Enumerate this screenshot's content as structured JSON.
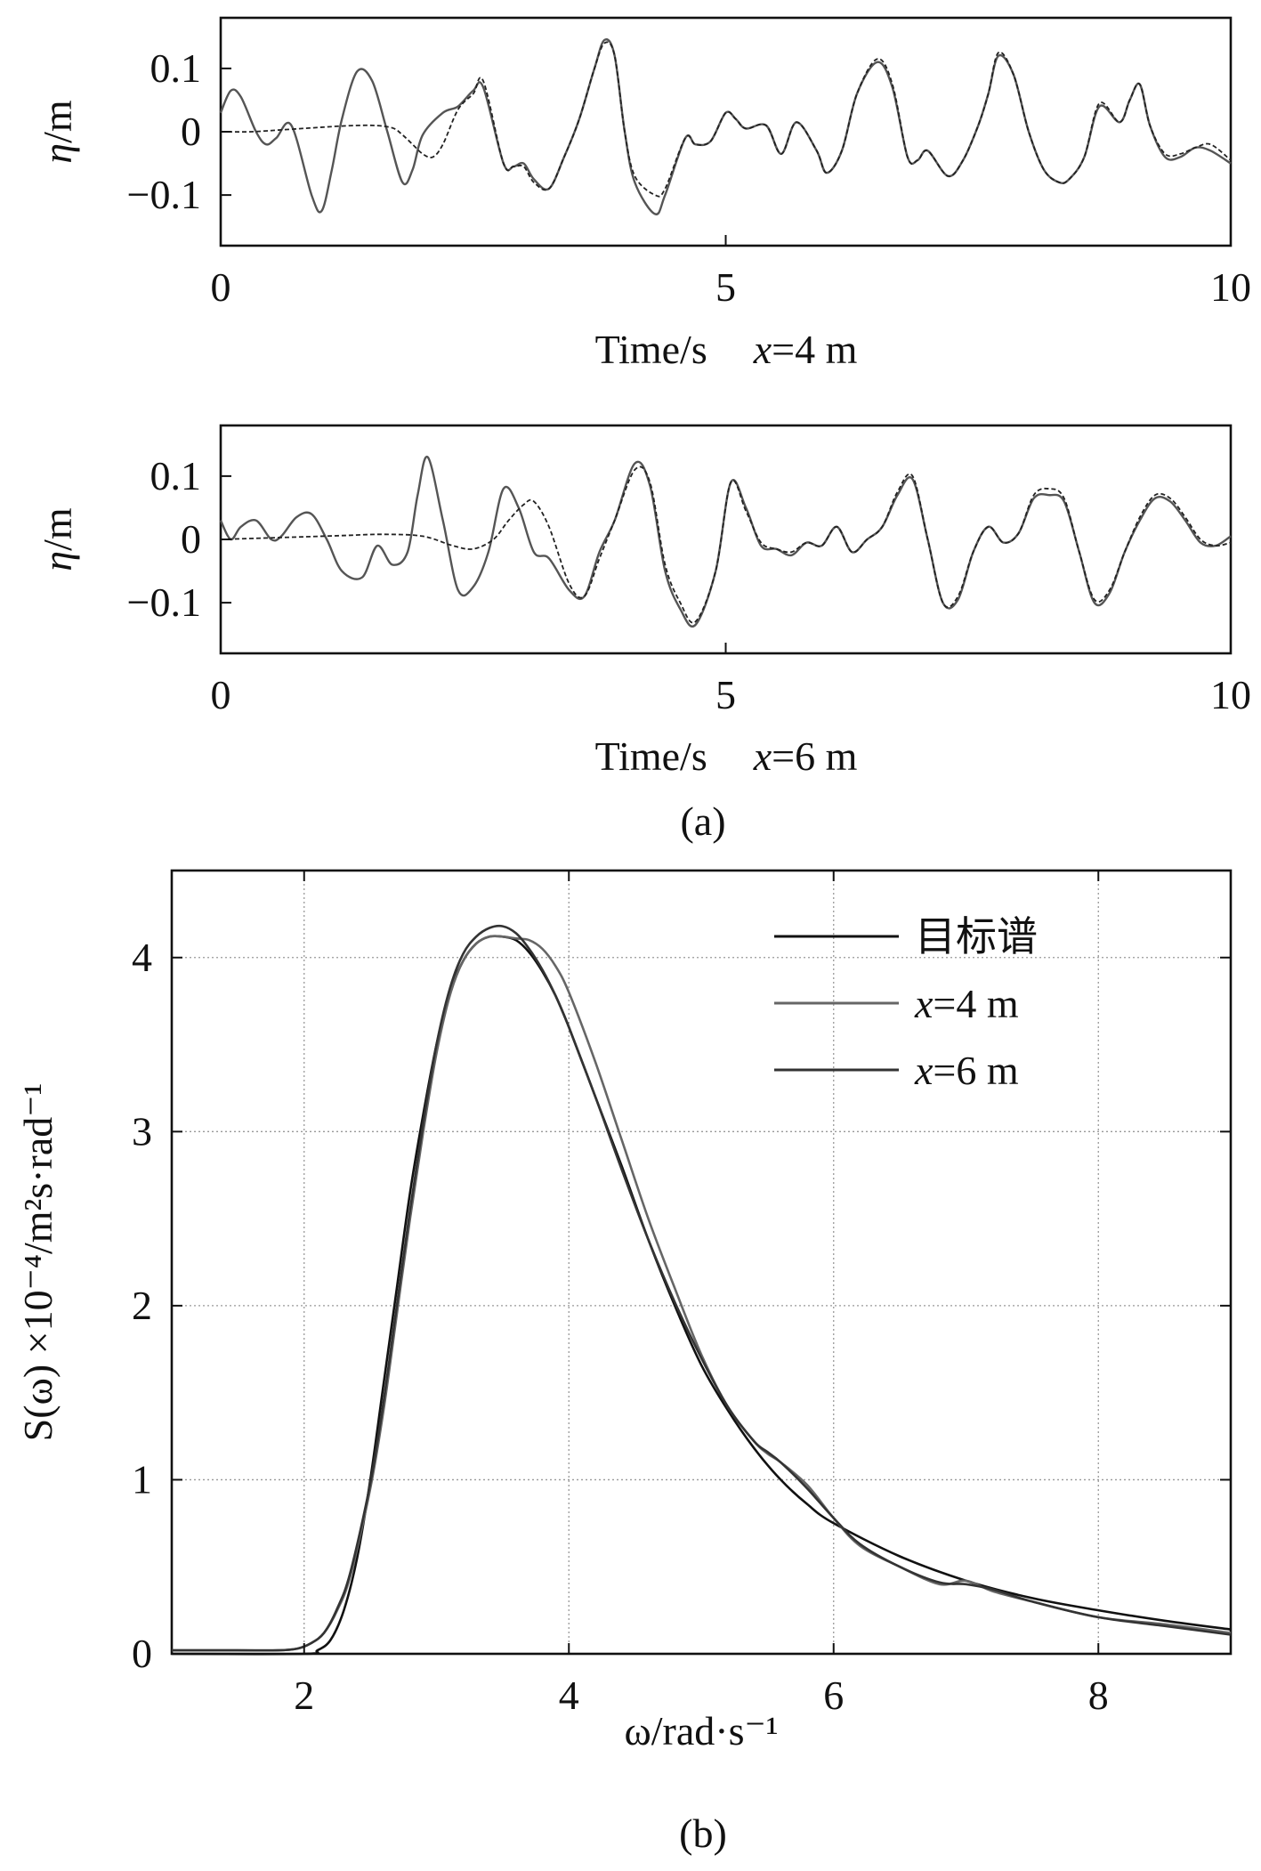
{
  "chart_data": [
    {
      "id": "a1",
      "type": "line",
      "ylabel_symbol": "η",
      "ylabel_unit": "/m",
      "xlabel_main": "Time/s",
      "xlabel_var": "x",
      "xlabel_rest": "=4 m",
      "xlim": [
        0,
        10
      ],
      "ylim": [
        -0.18,
        0.18
      ],
      "xticks": [
        0,
        5,
        10
      ],
      "xtick_labels": [
        "0",
        "5",
        "10"
      ],
      "yticks": [
        0.1,
        0,
        -0.1
      ],
      "ytick_labels": [
        "0.1",
        "0",
        "−0.1"
      ],
      "series": [
        {
          "name": "solid",
          "color": "#555555",
          "dash": false,
          "x": [
            0,
            0.1,
            0.2,
            0.35,
            0.45,
            0.55,
            0.7,
            0.9,
            1.0,
            1.1,
            1.2,
            1.35,
            1.5,
            1.65,
            1.8,
            1.9,
            2.0,
            2.2,
            2.35,
            2.5,
            2.6,
            2.8,
            2.9,
            3.0,
            3.1,
            3.25,
            3.4,
            3.55,
            3.7,
            3.8,
            3.9,
            4.0,
            4.1,
            4.3,
            4.4,
            4.6,
            4.7,
            4.85,
            5.0,
            5.1,
            5.2,
            5.4,
            5.55,
            5.7,
            5.9,
            6.0,
            6.15,
            6.3,
            6.5,
            6.65,
            6.8,
            6.9,
            7.0,
            7.2,
            7.35,
            7.5,
            7.6,
            7.7,
            7.85,
            8.0,
            8.15,
            8.3,
            8.4,
            8.55,
            8.7,
            8.9,
            9.0,
            9.1,
            9.2,
            9.35,
            9.5,
            9.65,
            9.8,
            10.0
          ],
          "y": [
            0.03,
            0.065,
            0.055,
            0.0,
            -0.02,
            -0.01,
            0.01,
            -0.1,
            -0.125,
            -0.06,
            0.02,
            0.095,
            0.08,
            0.0,
            -0.08,
            -0.06,
            -0.005,
            0.03,
            0.04,
            0.065,
            0.07,
            -0.05,
            -0.055,
            -0.05,
            -0.075,
            -0.09,
            -0.04,
            0.02,
            0.1,
            0.145,
            0.12,
            0.0,
            -0.08,
            -0.13,
            -0.1,
            -0.01,
            -0.02,
            -0.015,
            0.03,
            0.02,
            0.005,
            0.01,
            -0.035,
            0.015,
            -0.03,
            -0.065,
            -0.03,
            0.06,
            0.11,
            0.07,
            -0.04,
            -0.045,
            -0.03,
            -0.07,
            -0.045,
            0.01,
            0.06,
            0.12,
            0.09,
            0.0,
            -0.06,
            -0.08,
            -0.075,
            -0.04,
            0.04,
            0.015,
            0.05,
            0.075,
            0.01,
            -0.04,
            -0.04,
            -0.025,
            -0.03,
            -0.05
          ]
        },
        {
          "name": "dashed",
          "color": "#222222",
          "dash": true,
          "x": [
            0,
            0.3,
            0.6,
            0.9,
            1.2,
            1.5,
            1.7,
            1.8,
            1.9,
            2.0,
            2.1,
            2.2,
            2.35,
            2.5,
            2.6,
            2.8,
            2.9,
            3.0,
            3.1,
            3.25,
            3.4,
            3.55,
            3.7,
            3.8,
            3.9,
            4.0,
            4.1,
            4.3,
            4.4,
            4.6,
            4.7,
            4.85,
            5.0,
            5.1,
            5.2,
            5.4,
            5.55,
            5.7,
            5.9,
            6.0,
            6.15,
            6.3,
            6.5,
            6.65,
            6.8,
            6.9,
            7.0,
            7.2,
            7.35,
            7.5,
            7.6,
            7.7,
            7.85,
            8.0,
            8.15,
            8.3,
            8.4,
            8.55,
            8.7,
            8.9,
            9.0,
            9.1,
            9.2,
            9.35,
            9.5,
            9.65,
            9.8,
            10.0
          ],
          "y": [
            0.0,
            0.0,
            0.003,
            0.006,
            0.009,
            0.01,
            0.006,
            -0.005,
            -0.02,
            -0.035,
            -0.04,
            -0.02,
            0.035,
            0.06,
            0.08,
            -0.05,
            -0.055,
            -0.055,
            -0.08,
            -0.09,
            -0.04,
            0.02,
            0.1,
            0.14,
            0.12,
            0.0,
            -0.07,
            -0.1,
            -0.09,
            -0.01,
            -0.02,
            -0.015,
            0.03,
            0.02,
            0.005,
            0.01,
            -0.035,
            0.015,
            -0.03,
            -0.065,
            -0.03,
            0.06,
            0.115,
            0.075,
            -0.04,
            -0.045,
            -0.03,
            -0.07,
            -0.045,
            0.01,
            0.06,
            0.125,
            0.09,
            0.0,
            -0.06,
            -0.08,
            -0.075,
            -0.04,
            0.045,
            0.015,
            0.05,
            0.075,
            0.01,
            -0.035,
            -0.035,
            -0.025,
            -0.02,
            -0.045
          ]
        }
      ]
    },
    {
      "id": "a2",
      "type": "line",
      "ylabel_symbol": "η",
      "ylabel_unit": "/m",
      "xlabel_main": "Time/s",
      "xlabel_var": "x",
      "xlabel_rest": "=6 m",
      "xlim": [
        0,
        10
      ],
      "ylim": [
        -0.18,
        0.18
      ],
      "xticks": [
        0,
        5,
        10
      ],
      "xtick_labels": [
        "0",
        "5",
        "10"
      ],
      "yticks": [
        0.1,
        0,
        -0.1
      ],
      "ytick_labels": [
        "0.1",
        "0",
        "−0.1"
      ],
      "series": [
        {
          "name": "solid",
          "color": "#555555",
          "dash": false,
          "x": [
            0,
            0.1,
            0.2,
            0.35,
            0.5,
            0.6,
            0.75,
            0.9,
            1.05,
            1.2,
            1.4,
            1.55,
            1.7,
            1.85,
            1.95,
            2.05,
            2.2,
            2.35,
            2.5,
            2.65,
            2.8,
            2.95,
            3.1,
            3.25,
            3.45,
            3.6,
            3.75,
            3.9,
            4.1,
            4.25,
            4.4,
            4.55,
            4.7,
            4.9,
            5.05,
            5.2,
            5.35,
            5.5,
            5.65,
            5.8,
            5.95,
            6.1,
            6.25,
            6.4,
            6.55,
            6.7,
            6.85,
            7.0,
            7.15,
            7.3,
            7.45,
            7.6,
            7.75,
            7.9,
            8.05,
            8.2,
            8.35,
            8.5,
            8.65,
            8.8,
            8.95,
            9.1,
            9.25,
            9.4,
            9.55,
            9.7,
            9.85,
            10.0
          ],
          "y": [
            0.03,
            0.0,
            0.02,
            0.03,
            0.0,
            0.005,
            0.035,
            0.04,
            0.0,
            -0.05,
            -0.06,
            -0.01,
            -0.04,
            -0.02,
            0.07,
            0.13,
            0.03,
            -0.08,
            -0.075,
            -0.02,
            0.08,
            0.05,
            -0.02,
            -0.03,
            -0.08,
            -0.09,
            -0.02,
            0.03,
            0.12,
            0.085,
            -0.05,
            -0.11,
            -0.135,
            -0.05,
            0.09,
            0.05,
            -0.01,
            -0.015,
            -0.025,
            -0.005,
            -0.01,
            0.02,
            -0.02,
            0.0,
            0.02,
            0.07,
            0.095,
            0.0,
            -0.1,
            -0.095,
            -0.02,
            0.02,
            -0.005,
            0.01,
            0.065,
            0.07,
            0.06,
            -0.02,
            -0.1,
            -0.085,
            -0.02,
            0.03,
            0.065,
            0.06,
            0.03,
            -0.005,
            -0.01,
            0.005
          ]
        },
        {
          "name": "dashed",
          "color": "#222222",
          "dash": true,
          "x": [
            0,
            0.4,
            0.8,
            1.2,
            1.6,
            2.0,
            2.3,
            2.5,
            2.7,
            2.85,
            3.0,
            3.1,
            3.25,
            3.45,
            3.6,
            3.75,
            3.9,
            4.1,
            4.25,
            4.4,
            4.55,
            4.7,
            4.9,
            5.05,
            5.2,
            5.35,
            5.5,
            5.65,
            5.8,
            5.95,
            6.1,
            6.25,
            6.4,
            6.55,
            6.7,
            6.85,
            7.0,
            7.15,
            7.3,
            7.45,
            7.6,
            7.75,
            7.9,
            8.05,
            8.2,
            8.35,
            8.5,
            8.65,
            8.8,
            8.95,
            9.1,
            9.25,
            9.4,
            9.55,
            9.7,
            9.85,
            10.0
          ],
          "y": [
            0.0,
            0.002,
            0.004,
            0.006,
            0.008,
            0.005,
            -0.01,
            -0.015,
            0.0,
            0.03,
            0.055,
            0.06,
            0.02,
            -0.07,
            -0.09,
            -0.03,
            0.03,
            0.11,
            0.09,
            -0.04,
            -0.1,
            -0.13,
            -0.05,
            0.09,
            0.045,
            -0.005,
            -0.015,
            -0.02,
            -0.005,
            -0.01,
            0.02,
            -0.02,
            0.0,
            0.02,
            0.075,
            0.1,
            0.0,
            -0.1,
            -0.09,
            -0.02,
            0.02,
            -0.005,
            0.01,
            0.07,
            0.08,
            0.065,
            -0.02,
            -0.095,
            -0.08,
            -0.02,
            0.035,
            0.07,
            0.065,
            0.035,
            0.0,
            -0.01,
            -0.005
          ]
        }
      ]
    },
    {
      "id": "b",
      "type": "line",
      "ylabel": "S(ω) ×10⁻⁴/m²s·rad⁻¹",
      "xlabel": "ω/rad·s⁻¹",
      "xlim": [
        1,
        9
      ],
      "ylim": [
        0,
        4.5
      ],
      "xticks": [
        2,
        4,
        6,
        8
      ],
      "xtick_labels": [
        "2",
        "4",
        "6",
        "8"
      ],
      "yticks": [
        0,
        1,
        2,
        3,
        4
      ],
      "ytick_labels": [
        "0",
        "1",
        "2",
        "3",
        "4"
      ],
      "grid": true,
      "legend_position": "top-right",
      "series": [
        {
          "name": "目标谱",
          "name_var": "",
          "name_rest": "目标谱",
          "color": "#111111",
          "x": [
            1,
            2.0,
            2.1,
            2.2,
            2.3,
            2.4,
            2.5,
            2.6,
            2.7,
            2.8,
            2.9,
            3.0,
            3.1,
            3.2,
            3.3,
            3.4,
            3.5,
            3.6,
            3.7,
            3.8,
            3.9,
            4.0,
            4.2,
            4.4,
            4.6,
            4.8,
            5.0,
            5.2,
            5.4,
            5.6,
            5.8,
            6.0,
            6.5,
            7.0,
            7.5,
            8.0,
            8.5,
            9.0
          ],
          "y": [
            0.0,
            0.0,
            0.02,
            0.08,
            0.25,
            0.55,
            1.0,
            1.55,
            2.1,
            2.65,
            3.1,
            3.5,
            3.8,
            3.98,
            4.08,
            4.12,
            4.12,
            4.1,
            4.03,
            3.92,
            3.78,
            3.6,
            3.2,
            2.8,
            2.38,
            2.0,
            1.66,
            1.4,
            1.18,
            1.0,
            0.86,
            0.75,
            0.56,
            0.42,
            0.32,
            0.25,
            0.19,
            0.14
          ]
        },
        {
          "name": "x=4 m",
          "name_var": "x",
          "name_rest": "=4 m",
          "color": "#666666",
          "x": [
            1,
            1.5,
            1.8,
            1.95,
            2.05,
            2.15,
            2.25,
            2.35,
            2.5,
            2.6,
            2.7,
            2.8,
            2.9,
            3.0,
            3.1,
            3.2,
            3.3,
            3.4,
            3.5,
            3.6,
            3.7,
            3.8,
            3.9,
            4.0,
            4.2,
            4.4,
            4.6,
            4.8,
            5.0,
            5.2,
            5.4,
            5.5,
            5.6,
            5.8,
            6.0,
            6.2,
            6.5,
            6.8,
            7.0,
            7.2,
            7.5,
            8.0,
            8.5,
            9.0
          ],
          "y": [
            0.02,
            0.02,
            0.02,
            0.03,
            0.06,
            0.12,
            0.25,
            0.45,
            0.95,
            1.4,
            1.95,
            2.5,
            3.0,
            3.45,
            3.78,
            3.98,
            4.08,
            4.12,
            4.12,
            4.11,
            4.1,
            4.05,
            3.95,
            3.8,
            3.4,
            2.95,
            2.5,
            2.1,
            1.72,
            1.42,
            1.22,
            1.15,
            1.1,
            0.97,
            0.78,
            0.62,
            0.5,
            0.4,
            0.42,
            0.36,
            0.3,
            0.21,
            0.17,
            0.12
          ]
        },
        {
          "name": "x=6 m",
          "name_var": "x",
          "name_rest": "=6 m",
          "color": "#333333",
          "x": [
            1,
            1.5,
            1.8,
            1.95,
            2.05,
            2.15,
            2.25,
            2.35,
            2.5,
            2.6,
            2.7,
            2.8,
            2.9,
            3.0,
            3.1,
            3.2,
            3.3,
            3.4,
            3.5,
            3.6,
            3.7,
            3.8,
            3.9,
            4.0,
            4.2,
            4.4,
            4.6,
            4.8,
            5.0,
            5.2,
            5.4,
            5.5,
            5.6,
            5.8,
            6.0,
            6.2,
            6.5,
            6.8,
            7.0,
            7.2,
            7.5,
            8.0,
            8.5,
            9.0
          ],
          "y": [
            0.02,
            0.02,
            0.02,
            0.03,
            0.06,
            0.12,
            0.26,
            0.47,
            0.98,
            1.45,
            2.0,
            2.55,
            3.05,
            3.5,
            3.82,
            4.02,
            4.12,
            4.17,
            4.18,
            4.14,
            4.05,
            3.93,
            3.78,
            3.6,
            3.2,
            2.78,
            2.38,
            2.02,
            1.7,
            1.42,
            1.22,
            1.16,
            1.1,
            0.95,
            0.78,
            0.63,
            0.5,
            0.41,
            0.4,
            0.37,
            0.3,
            0.21,
            0.16,
            0.11
          ]
        }
      ]
    }
  ],
  "captions": {
    "a": "(a)",
    "b": "(b)"
  }
}
